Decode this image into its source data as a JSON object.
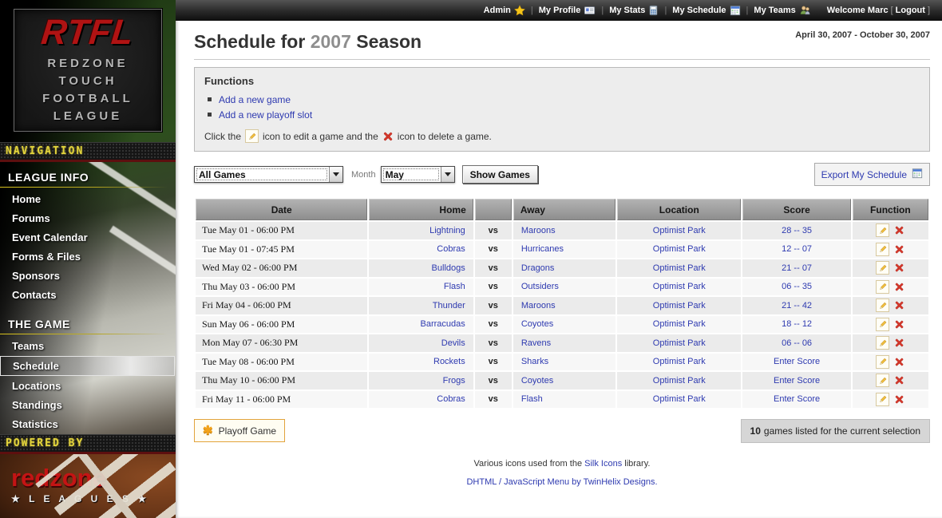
{
  "colors": {
    "link_blue": "#2e3ab0",
    "brand_red": "#c41414",
    "led_yellow": "#e3d43c",
    "delete_red": "#d5382c",
    "edit_gold": "#f0c040",
    "playoff_orange": "#e2a33c",
    "header_gray": "#9c9c9c"
  },
  "topbar": {
    "separator": "|",
    "items": [
      {
        "label": "Admin",
        "icon": "star"
      },
      {
        "label": "My Profile",
        "icon": "vcard"
      },
      {
        "label": "My Stats",
        "icon": "calculator"
      },
      {
        "label": "My Schedule",
        "icon": "calendar"
      },
      {
        "label": "My Teams",
        "icon": "group"
      }
    ],
    "welcome": "Welcome Marc",
    "bracket_open": "[",
    "logout": "Logout",
    "bracket_close": "]"
  },
  "sidebar": {
    "logo": {
      "abbr": "RTFL",
      "line1": "REDZONE",
      "line2": "TOUCH",
      "line3": "FOOTBALL",
      "line4": "LEAGUE"
    },
    "navigation_banner": "NAVIGATION",
    "league_info": {
      "heading": "LEAGUE INFO",
      "items": [
        "Home",
        "Forums",
        "Event Calendar",
        "Forms & Files",
        "Sponsors",
        "Contacts"
      ]
    },
    "the_game": {
      "heading": "THE GAME",
      "items": [
        "Teams",
        "Schedule",
        "Locations",
        "Standings",
        "Statistics"
      ],
      "selected": "Schedule"
    },
    "powered_banner": "POWERED BY",
    "powered_logo": {
      "name": "redzone",
      "sub": "★ L E A G U E S ★"
    }
  },
  "header": {
    "title_prefix": "Schedule for",
    "season": "2007",
    "title_suffix": "Season",
    "date_range": "April 30, 2007 - October 30, 2007"
  },
  "functions": {
    "title": "Functions",
    "links": [
      "Add a new game",
      "Add a new playoff slot"
    ],
    "note_before_edit": "Click the",
    "note_between": "icon to edit a game and the",
    "note_after": "icon to delete a game."
  },
  "filters": {
    "games_select_value": "All Games",
    "month_label": "Month",
    "month_select_value": "May",
    "show_games_button": "Show Games",
    "export_button": "Export My Schedule"
  },
  "table": {
    "columns": [
      "Date",
      "Home",
      "",
      "Away",
      "Location",
      "Score",
      "Function"
    ],
    "vs_label": "vs",
    "rows": [
      {
        "date": "Tue May 01 - 06:00 PM",
        "home": "Lightning",
        "away": "Maroons",
        "location": "Optimist Park",
        "score": "28 -- 35"
      },
      {
        "date": "Tue May 01 - 07:45 PM",
        "home": "Cobras",
        "away": "Hurricanes",
        "location": "Optimist Park",
        "score": "12 -- 07"
      },
      {
        "date": "Wed May 02 - 06:00 PM",
        "home": "Bulldogs",
        "away": "Dragons",
        "location": "Optimist Park",
        "score": "21 -- 07"
      },
      {
        "date": "Thu May 03 - 06:00 PM",
        "home": "Flash",
        "away": "Outsiders",
        "location": "Optimist Park",
        "score": "06 -- 35"
      },
      {
        "date": "Fri May 04 - 06:00 PM",
        "home": "Thunder",
        "away": "Maroons",
        "location": "Optimist Park",
        "score": "21 -- 42"
      },
      {
        "date": "Sun May 06 - 06:00 PM",
        "home": "Barracudas",
        "away": "Coyotes",
        "location": "Optimist Park",
        "score": "18 -- 12"
      },
      {
        "date": "Mon May 07 - 06:30 PM",
        "home": "Devils",
        "away": "Ravens",
        "location": "Optimist Park",
        "score": "06 -- 06"
      },
      {
        "date": "Tue May 08 - 06:00 PM",
        "home": "Rockets",
        "away": "Sharks",
        "location": "Optimist Park",
        "score": "Enter Score"
      },
      {
        "date": "Thu May 10 - 06:00 PM",
        "home": "Frogs",
        "away": "Coyotes",
        "location": "Optimist Park",
        "score": "Enter Score"
      },
      {
        "date": "Fri May 11 - 06:00 PM",
        "home": "Cobras",
        "away": "Flash",
        "location": "Optimist Park",
        "score": "Enter Score"
      }
    ]
  },
  "footer": {
    "playoff_button": "Playoff Game",
    "count_number": "10",
    "count_text": "games listed for the current selection",
    "credit1_before": "Various icons used from the",
    "credit1_link": "Silk Icons",
    "credit1_after": "library.",
    "credit2": "DHTML / JavaScript Menu by TwinHelix Designs."
  }
}
